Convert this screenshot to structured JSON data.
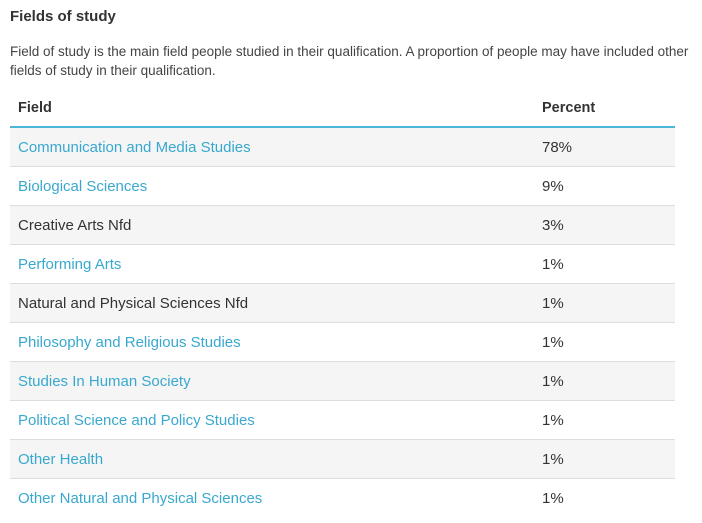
{
  "section": {
    "title": "Fields of study",
    "description": "Field of study is the main field people studied in their qualification. A proportion of people may have included other fields of study in their qualification."
  },
  "table": {
    "headers": {
      "field": "Field",
      "percent": "Percent"
    },
    "rows": [
      {
        "field": "Communication and Media Studies",
        "percent": "78%",
        "is_link": true
      },
      {
        "field": "Biological Sciences",
        "percent": "9%",
        "is_link": true
      },
      {
        "field": "Creative Arts Nfd",
        "percent": "3%",
        "is_link": false
      },
      {
        "field": "Performing Arts",
        "percent": "1%",
        "is_link": true
      },
      {
        "field": "Natural and Physical Sciences Nfd",
        "percent": "1%",
        "is_link": false
      },
      {
        "field": "Philosophy and Religious Studies",
        "percent": "1%",
        "is_link": true
      },
      {
        "field": "Studies In Human Society",
        "percent": "1%",
        "is_link": true
      },
      {
        "field": "Political Science and Policy Studies",
        "percent": "1%",
        "is_link": true
      },
      {
        "field": "Other Health",
        "percent": "1%",
        "is_link": true
      },
      {
        "field": "Other Natural and Physical Sciences",
        "percent": "1%",
        "is_link": true
      }
    ]
  },
  "colors": {
    "link": "#39a8cf",
    "header_rule": "#4cb6d6",
    "stripe": "#f5f5f5",
    "text": "#333333"
  }
}
